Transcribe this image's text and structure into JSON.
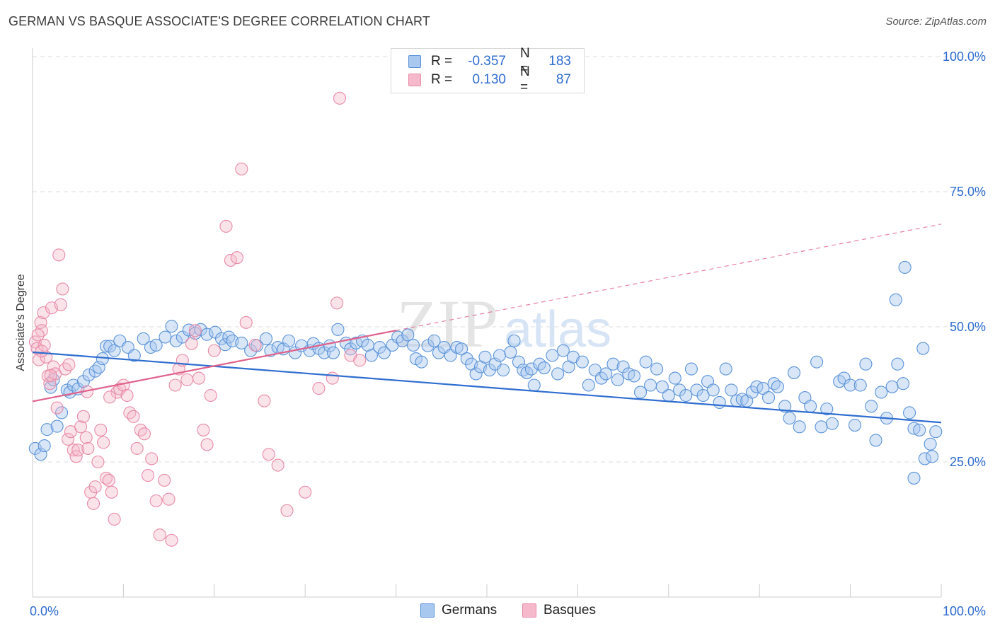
{
  "title": "GERMAN VS BASQUE ASSOCIATE'S DEGREE CORRELATION CHART",
  "source": "Source: ZipAtlas.com",
  "watermark": {
    "zip": "ZIP",
    "atlas": "atlas"
  },
  "legend": {
    "rows": [
      {
        "r_label": "R =",
        "r_value": "-0.357",
        "n_label": "N =",
        "n_value": "183"
      },
      {
        "r_label": "R =",
        "r_value": "0.130",
        "n_label": "N =",
        "n_value": "87"
      }
    ]
  },
  "bottom_legend": [
    "Germans",
    "Basques"
  ],
  "colors": {
    "germans_fill": "#a8c8f0",
    "germans_stroke": "#5b93d8",
    "germans_line": "#2f6dd0",
    "basques_fill": "#f6b8cb",
    "basques_stroke": "#e88aa8",
    "basques_line": "#e0628c",
    "tick_label": "#2f6dd0",
    "grid": "#dddddd"
  },
  "chart_data": {
    "type": "scatter",
    "title": "GERMAN VS BASQUE ASSOCIATE'S DEGREE CORRELATION CHART",
    "xlabel": "",
    "ylabel": "Associate's Degree",
    "xlim": [
      0,
      100
    ],
    "ylim": [
      0,
      100
    ],
    "x_tick_labels": [
      "0.0%",
      "100.0%"
    ],
    "y_ticks": [
      25,
      50,
      75,
      100
    ],
    "y_tick_labels": [
      "25.0%",
      "50.0%",
      "75.0%",
      "100.0%"
    ],
    "grid": true,
    "legend_position": "top-center",
    "series": [
      {
        "name": "Germans",
        "r": -0.357,
        "n": 183,
        "trend": {
          "x": [
            0,
            100
          ],
          "y": [
            45.3,
            32.3
          ]
        },
        "points": [
          [
            0.3,
            27.5
          ],
          [
            0.9,
            26.4
          ],
          [
            1.3,
            28.0
          ],
          [
            1.6,
            31.0
          ],
          [
            2.0,
            38.8
          ],
          [
            2.3,
            40.2
          ],
          [
            2.7,
            31.6
          ],
          [
            3.2,
            34.1
          ],
          [
            3.8,
            38.3
          ],
          [
            4.1,
            37.9
          ],
          [
            4.5,
            39.2
          ],
          [
            5.0,
            38.5
          ],
          [
            5.6,
            39.9
          ],
          [
            6.2,
            41.1
          ],
          [
            6.9,
            41.8
          ],
          [
            7.3,
            42.5
          ],
          [
            7.7,
            44.1
          ],
          [
            8.1,
            46.4
          ],
          [
            8.5,
            46.4
          ],
          [
            9.0,
            45.6
          ],
          [
            9.6,
            47.4
          ],
          [
            10.5,
            46.2
          ],
          [
            11.2,
            44.7
          ],
          [
            12.2,
            47.8
          ],
          [
            13.0,
            46.2
          ],
          [
            13.6,
            46.6
          ],
          [
            14.6,
            48.1
          ],
          [
            15.3,
            50.1
          ],
          [
            15.8,
            47.4
          ],
          [
            16.5,
            48.1
          ],
          [
            17.2,
            49.4
          ],
          [
            17.9,
            48.8
          ],
          [
            18.5,
            49.5
          ],
          [
            19.2,
            48.6
          ],
          [
            20.1,
            49.0
          ],
          [
            20.8,
            47.8
          ],
          [
            21.2,
            46.7
          ],
          [
            21.6,
            48.1
          ],
          [
            22.0,
            47.4
          ],
          [
            23.0,
            47.0
          ],
          [
            24.0,
            45.6
          ],
          [
            24.7,
            46.5
          ],
          [
            25.7,
            47.8
          ],
          [
            26.2,
            45.6
          ],
          [
            27.0,
            46.2
          ],
          [
            27.6,
            45.9
          ],
          [
            28.2,
            47.4
          ],
          [
            28.9,
            45.2
          ],
          [
            29.6,
            46.5
          ],
          [
            30.5,
            45.6
          ],
          [
            30.9,
            46.9
          ],
          [
            31.5,
            46.0
          ],
          [
            32.1,
            45.2
          ],
          [
            32.7,
            46.5
          ],
          [
            33.1,
            45.2
          ],
          [
            33.6,
            49.5
          ],
          [
            34.5,
            47.0
          ],
          [
            35.0,
            45.9
          ],
          [
            35.6,
            47.0
          ],
          [
            36.3,
            47.4
          ],
          [
            36.9,
            46.6
          ],
          [
            37.3,
            44.7
          ],
          [
            38.2,
            46.2
          ],
          [
            38.7,
            45.2
          ],
          [
            39.6,
            46.6
          ],
          [
            40.2,
            48.1
          ],
          [
            40.7,
            47.4
          ],
          [
            41.3,
            48.5
          ],
          [
            41.9,
            46.6
          ],
          [
            42.2,
            44.1
          ],
          [
            42.8,
            43.5
          ],
          [
            43.5,
            46.5
          ],
          [
            44.2,
            47.4
          ],
          [
            44.7,
            45.2
          ],
          [
            45.3,
            46.2
          ],
          [
            46.0,
            44.7
          ],
          [
            46.7,
            46.2
          ],
          [
            47.2,
            45.9
          ],
          [
            47.8,
            44.1
          ],
          [
            48.3,
            43.1
          ],
          [
            48.8,
            41.3
          ],
          [
            49.3,
            42.6
          ],
          [
            49.8,
            44.4
          ],
          [
            50.3,
            42.0
          ],
          [
            50.9,
            43.1
          ],
          [
            51.4,
            44.7
          ],
          [
            51.8,
            42.0
          ],
          [
            52.6,
            45.3
          ],
          [
            53.0,
            47.4
          ],
          [
            53.5,
            43.5
          ],
          [
            54.0,
            42.0
          ],
          [
            54.4,
            41.5
          ],
          [
            54.9,
            42.2
          ],
          [
            55.2,
            39.2
          ],
          [
            55.8,
            43.1
          ],
          [
            56.3,
            42.4
          ],
          [
            57.2,
            44.7
          ],
          [
            57.8,
            41.3
          ],
          [
            58.4,
            45.6
          ],
          [
            59.0,
            42.6
          ],
          [
            59.5,
            44.4
          ],
          [
            60.5,
            43.5
          ],
          [
            61.2,
            39.2
          ],
          [
            61.9,
            42.0
          ],
          [
            62.6,
            40.5
          ],
          [
            63.1,
            41.3
          ],
          [
            63.9,
            43.1
          ],
          [
            64.4,
            40.2
          ],
          [
            65.0,
            42.6
          ],
          [
            65.6,
            41.3
          ],
          [
            66.2,
            40.9
          ],
          [
            66.9,
            37.9
          ],
          [
            67.5,
            43.5
          ],
          [
            68.0,
            39.2
          ],
          [
            68.7,
            42.2
          ],
          [
            69.3,
            38.9
          ],
          [
            70.0,
            37.3
          ],
          [
            70.7,
            40.5
          ],
          [
            71.2,
            38.3
          ],
          [
            71.9,
            37.3
          ],
          [
            72.5,
            42.2
          ],
          [
            73.1,
            38.3
          ],
          [
            73.8,
            37.3
          ],
          [
            74.3,
            39.9
          ],
          [
            74.9,
            38.3
          ],
          [
            75.6,
            36.0
          ],
          [
            76.3,
            42.2
          ],
          [
            76.9,
            38.3
          ],
          [
            77.5,
            36.3
          ],
          [
            78.1,
            36.6
          ],
          [
            78.6,
            36.3
          ],
          [
            79.2,
            37.9
          ],
          [
            79.7,
            38.9
          ],
          [
            80.4,
            38.6
          ],
          [
            81.0,
            36.9
          ],
          [
            81.6,
            39.5
          ],
          [
            82.0,
            38.9
          ],
          [
            82.8,
            35.3
          ],
          [
            83.3,
            33.1
          ],
          [
            83.8,
            41.5
          ],
          [
            84.4,
            31.5
          ],
          [
            85.0,
            36.9
          ],
          [
            85.6,
            35.3
          ],
          [
            86.3,
            43.5
          ],
          [
            86.8,
            31.5
          ],
          [
            87.4,
            34.8
          ],
          [
            88.0,
            32.1
          ],
          [
            88.8,
            39.9
          ],
          [
            89.3,
            40.5
          ],
          [
            90.0,
            39.2
          ],
          [
            90.5,
            31.8
          ],
          [
            91.1,
            39.2
          ],
          [
            91.7,
            43.1
          ],
          [
            92.3,
            35.3
          ],
          [
            92.8,
            29.0
          ],
          [
            93.4,
            37.9
          ],
          [
            94.0,
            33.1
          ],
          [
            94.6,
            38.9
          ],
          [
            95.2,
            43.1
          ],
          [
            95.8,
            39.5
          ],
          [
            96.5,
            34.1
          ],
          [
            97.0,
            31.2
          ],
          [
            97.6,
            30.9
          ],
          [
            98.2,
            25.6
          ],
          [
            98.8,
            28.3
          ],
          [
            99.0,
            26.0
          ],
          [
            99.4,
            30.6
          ],
          [
            96.0,
            61.0
          ],
          [
            97.0,
            22.0
          ],
          [
            98.0,
            46.0
          ],
          [
            95.0,
            55.0
          ]
        ]
      },
      {
        "name": "Basques",
        "r": 0.13,
        "n": 87,
        "trend": {
          "x": [
            0,
            100
          ],
          "y": [
            36.2,
            69.0
          ]
        },
        "points": [
          [
            0.3,
            47.2
          ],
          [
            0.5,
            46.0
          ],
          [
            0.7,
            43.9
          ],
          [
            0.9,
            50.8
          ],
          [
            1.0,
            49.3
          ],
          [
            1.2,
            52.6
          ],
          [
            1.3,
            46.6
          ],
          [
            1.5,
            44.4
          ],
          [
            1.7,
            40.9
          ],
          [
            1.9,
            39.5
          ],
          [
            2.1,
            53.5
          ],
          [
            2.3,
            42.6
          ],
          [
            2.5,
            41.3
          ],
          [
            2.7,
            35.0
          ],
          [
            2.9,
            63.3
          ],
          [
            3.1,
            54.1
          ],
          [
            3.3,
            57.0
          ],
          [
            3.6,
            42.2
          ],
          [
            3.9,
            29.2
          ],
          [
            4.2,
            30.6
          ],
          [
            4.5,
            27.2
          ],
          [
            4.8,
            26.0
          ],
          [
            5.0,
            27.2
          ],
          [
            5.3,
            31.5
          ],
          [
            5.6,
            33.4
          ],
          [
            5.9,
            29.5
          ],
          [
            6.1,
            27.5
          ],
          [
            6.4,
            19.4
          ],
          [
            6.7,
            17.3
          ],
          [
            6.9,
            20.4
          ],
          [
            7.2,
            25.0
          ],
          [
            7.5,
            30.9
          ],
          [
            7.8,
            28.6
          ],
          [
            8.1,
            22.0
          ],
          [
            8.4,
            21.6
          ],
          [
            8.7,
            19.4
          ],
          [
            9.0,
            14.4
          ],
          [
            9.3,
            37.9
          ],
          [
            9.6,
            38.5
          ],
          [
            10.0,
            39.2
          ],
          [
            10.4,
            37.3
          ],
          [
            10.7,
            34.1
          ],
          [
            11.1,
            33.4
          ],
          [
            11.5,
            27.5
          ],
          [
            11.9,
            30.9
          ],
          [
            12.3,
            30.2
          ],
          [
            12.7,
            22.5
          ],
          [
            13.1,
            25.6
          ],
          [
            13.6,
            17.8
          ],
          [
            14.0,
            11.5
          ],
          [
            14.5,
            21.6
          ],
          [
            15.0,
            18.1
          ],
          [
            15.3,
            10.5
          ],
          [
            15.7,
            39.2
          ],
          [
            16.1,
            42.2
          ],
          [
            16.5,
            43.8
          ],
          [
            17.0,
            40.2
          ],
          [
            17.5,
            46.9
          ],
          [
            17.9,
            49.3
          ],
          [
            18.3,
            40.5
          ],
          [
            18.8,
            30.9
          ],
          [
            19.2,
            28.2
          ],
          [
            19.6,
            37.3
          ],
          [
            20.0,
            45.6
          ],
          [
            21.3,
            68.6
          ],
          [
            21.8,
            62.3
          ],
          [
            22.5,
            62.8
          ],
          [
            23.5,
            50.8
          ],
          [
            24.5,
            46.6
          ],
          [
            25.5,
            36.3
          ],
          [
            26.0,
            26.4
          ],
          [
            27.0,
            24.4
          ],
          [
            28.0,
            16.0
          ],
          [
            30.0,
            19.4
          ],
          [
            31.5,
            38.6
          ],
          [
            33.0,
            40.5
          ],
          [
            35.0,
            44.7
          ],
          [
            36.0,
            43.8
          ],
          [
            23.0,
            79.2
          ],
          [
            33.5,
            54.4
          ],
          [
            33.8,
            92.3
          ],
          [
            2.0,
            41.0
          ],
          [
            1.0,
            45.5
          ],
          [
            0.6,
            48.5
          ],
          [
            4.0,
            43.0
          ],
          [
            6.0,
            38.0
          ],
          [
            8.5,
            37.0
          ]
        ]
      }
    ]
  }
}
